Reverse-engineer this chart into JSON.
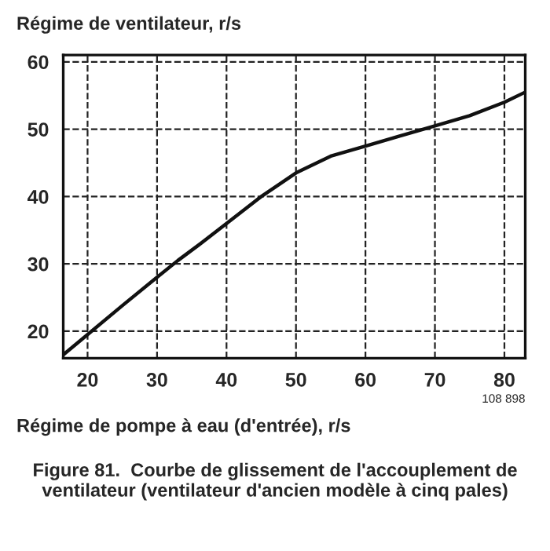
{
  "chart_data": {
    "type": "line",
    "title": "Figure 81.  Courbe de glissement de l'accouplement de ventilateur (ventilateur d'ancien modèle à cinq pales)",
    "ylabel": "Régime de ventilateur, r/s",
    "xlabel": "Régime de pompe à eau (d'entrée), r/s",
    "x": [
      16.5,
      20,
      25,
      30,
      33,
      36,
      40,
      45,
      50,
      55,
      60,
      65,
      70,
      75,
      80,
      83
    ],
    "series": [
      {
        "color": "#111111",
        "values": [
          16.5,
          19.5,
          23.8,
          28,
          30.5,
          32.8,
          36,
          40,
          43.5,
          46,
          47.5,
          49,
          50.5,
          52,
          54,
          55.5
        ]
      }
    ],
    "xlim": [
      16.5,
      83
    ],
    "ylim": [
      16,
      61
    ],
    "xticks": [
      20,
      30,
      40,
      50,
      60,
      70,
      80
    ],
    "yticks": [
      20,
      30,
      40,
      50,
      60
    ],
    "grid": true,
    "marker": "none",
    "line_style": "solid",
    "annotations": [
      "108 898"
    ]
  }
}
